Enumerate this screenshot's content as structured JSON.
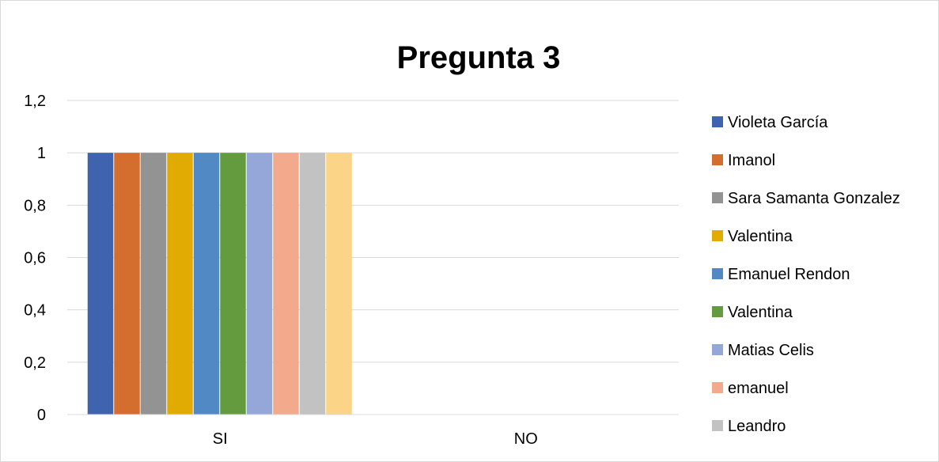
{
  "chart_data": {
    "type": "bar",
    "title": "Pregunta 3",
    "xlabel": "",
    "ylabel": "",
    "categories": [
      "SI",
      "NO"
    ],
    "ylim": [
      0,
      1.2
    ],
    "yticks": [
      0,
      0.2,
      0.4,
      0.6,
      0.8,
      1,
      1.2
    ],
    "ytick_labels": [
      "0",
      "0,2",
      "0,4",
      "0,6",
      "0,8",
      "1",
      "1,2"
    ],
    "grid": true,
    "legend_position": "right",
    "series": [
      {
        "name": "Violeta García",
        "color": "#4063af",
        "values": [
          1,
          0
        ]
      },
      {
        "name": "Imanol",
        "color": "#d46e2e",
        "values": [
          1,
          0
        ]
      },
      {
        "name": "Sara Samanta Gonzalez",
        "color": "#939393",
        "values": [
          1,
          0
        ]
      },
      {
        "name": "Valentina",
        "color": "#e2ab03",
        "values": [
          1,
          0
        ]
      },
      {
        "name": "Emanuel Rendon",
        "color": "#5189c4",
        "values": [
          1,
          0
        ]
      },
      {
        "name": "Valentina",
        "color": "#659b3f",
        "values": [
          1,
          0
        ]
      },
      {
        "name": "Matias Celis",
        "color": "#95a7d8",
        "values": [
          1,
          0
        ]
      },
      {
        "name": "emanuel",
        "color": "#f2a98c",
        "values": [
          1,
          0
        ]
      },
      {
        "name": "Leandro",
        "color": "#c2c2c2",
        "values": [
          1,
          0
        ]
      },
      {
        "name": "",
        "color": "#fcd487",
        "values": [
          1,
          0
        ]
      }
    ]
  }
}
